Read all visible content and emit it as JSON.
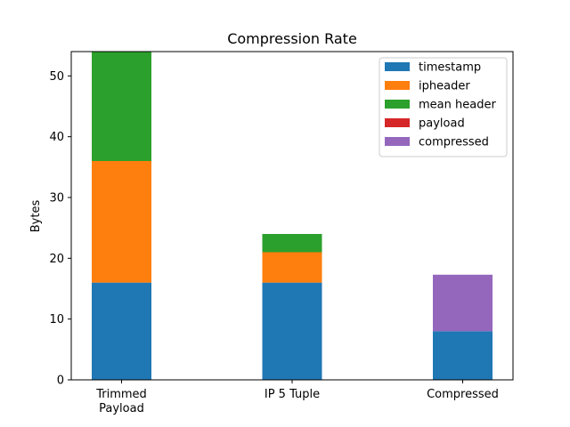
{
  "chart_data": {
    "type": "bar",
    "stacked": true,
    "title": "Compression Rate",
    "xlabel": "",
    "ylabel": "Bytes",
    "ylim": [
      0,
      54
    ],
    "yticks": [
      0,
      10,
      20,
      30,
      40,
      50
    ],
    "categories": [
      [
        "Trimmed",
        "Payload"
      ],
      [
        "IP 5 Tuple"
      ],
      [
        "Compressed"
      ]
    ],
    "series": [
      {
        "name": "timestamp",
        "color": "#1f77b4",
        "values": [
          16,
          16,
          8
        ]
      },
      {
        "name": "ipheader",
        "color": "#ff7f0e",
        "values": [
          20,
          5,
          0
        ]
      },
      {
        "name": "mean header",
        "color": "#2ca02c",
        "values": [
          18,
          3,
          0
        ]
      },
      {
        "name": "payload",
        "color": "#d62728",
        "values": [
          0,
          0,
          0
        ]
      },
      {
        "name": "compressed",
        "color": "#9467bd",
        "values": [
          0,
          0,
          9.3
        ]
      }
    ],
    "legend_position": "top-right",
    "grid": false
  }
}
